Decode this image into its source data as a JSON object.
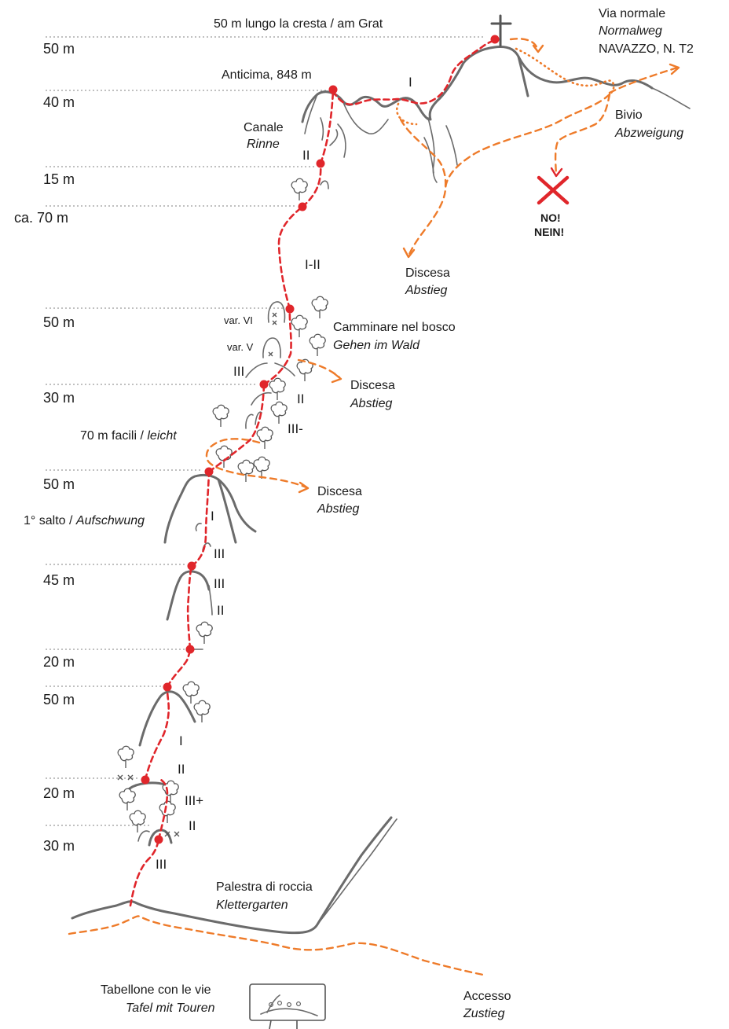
{
  "summit_labels": {
    "ridge": "50 m lungo la cresta / am Grat",
    "normal_it": "Via normale",
    "normal_de": "Normalweg",
    "normal_grade": "NAVAZZO, N. T2",
    "forepeak": "Anticima, 848 m",
    "gully_it": "Canale",
    "gully_de": "Rinne",
    "junction_it": "Bivio",
    "junction_de": "Abzweigung",
    "no_it": "NO!",
    "no_de": "NEIN!"
  },
  "descent_it": "Discesa",
  "descent_de": "Abstieg",
  "lengths": [
    "50 m",
    "40 m",
    "15 m",
    "ca. 70 m",
    "50 m",
    "30 m",
    "50 m",
    "45 m",
    "20 m",
    "50 m",
    "20 m",
    "30 m"
  ],
  "grades": {
    "g1": "I",
    "g2": "II",
    "g3": "I-II",
    "g4": "III",
    "g5": "II",
    "g6": "III-",
    "g7": "I",
    "g8": "III",
    "g9": "III",
    "g10": "II",
    "g11": "I",
    "g12": "II",
    "g13": "III+",
    "g14": "II",
    "g15": "III"
  },
  "variants": {
    "v1": "var. VI",
    "v2": "var. V"
  },
  "middle_labels": {
    "forest_it": "Camminare nel bosco",
    "forest_de": "Gehen im Wald",
    "easy_it": "70 m facili /",
    "easy_de": "leicht",
    "step_it": "1° salto /",
    "step_de": "Aufschwung"
  },
  "bottom_labels": {
    "crag_it": "Palestra di roccia",
    "crag_de": "Klettergarten",
    "board_it": "Tabellone con le vie",
    "board_de": "Tafel mit Touren",
    "approach_it": "Accesso",
    "approach_de": "Zustieg"
  },
  "colors": {
    "route": "#e0262b",
    "descent": "#ee7b2a",
    "rock": "#6b6b6b"
  }
}
